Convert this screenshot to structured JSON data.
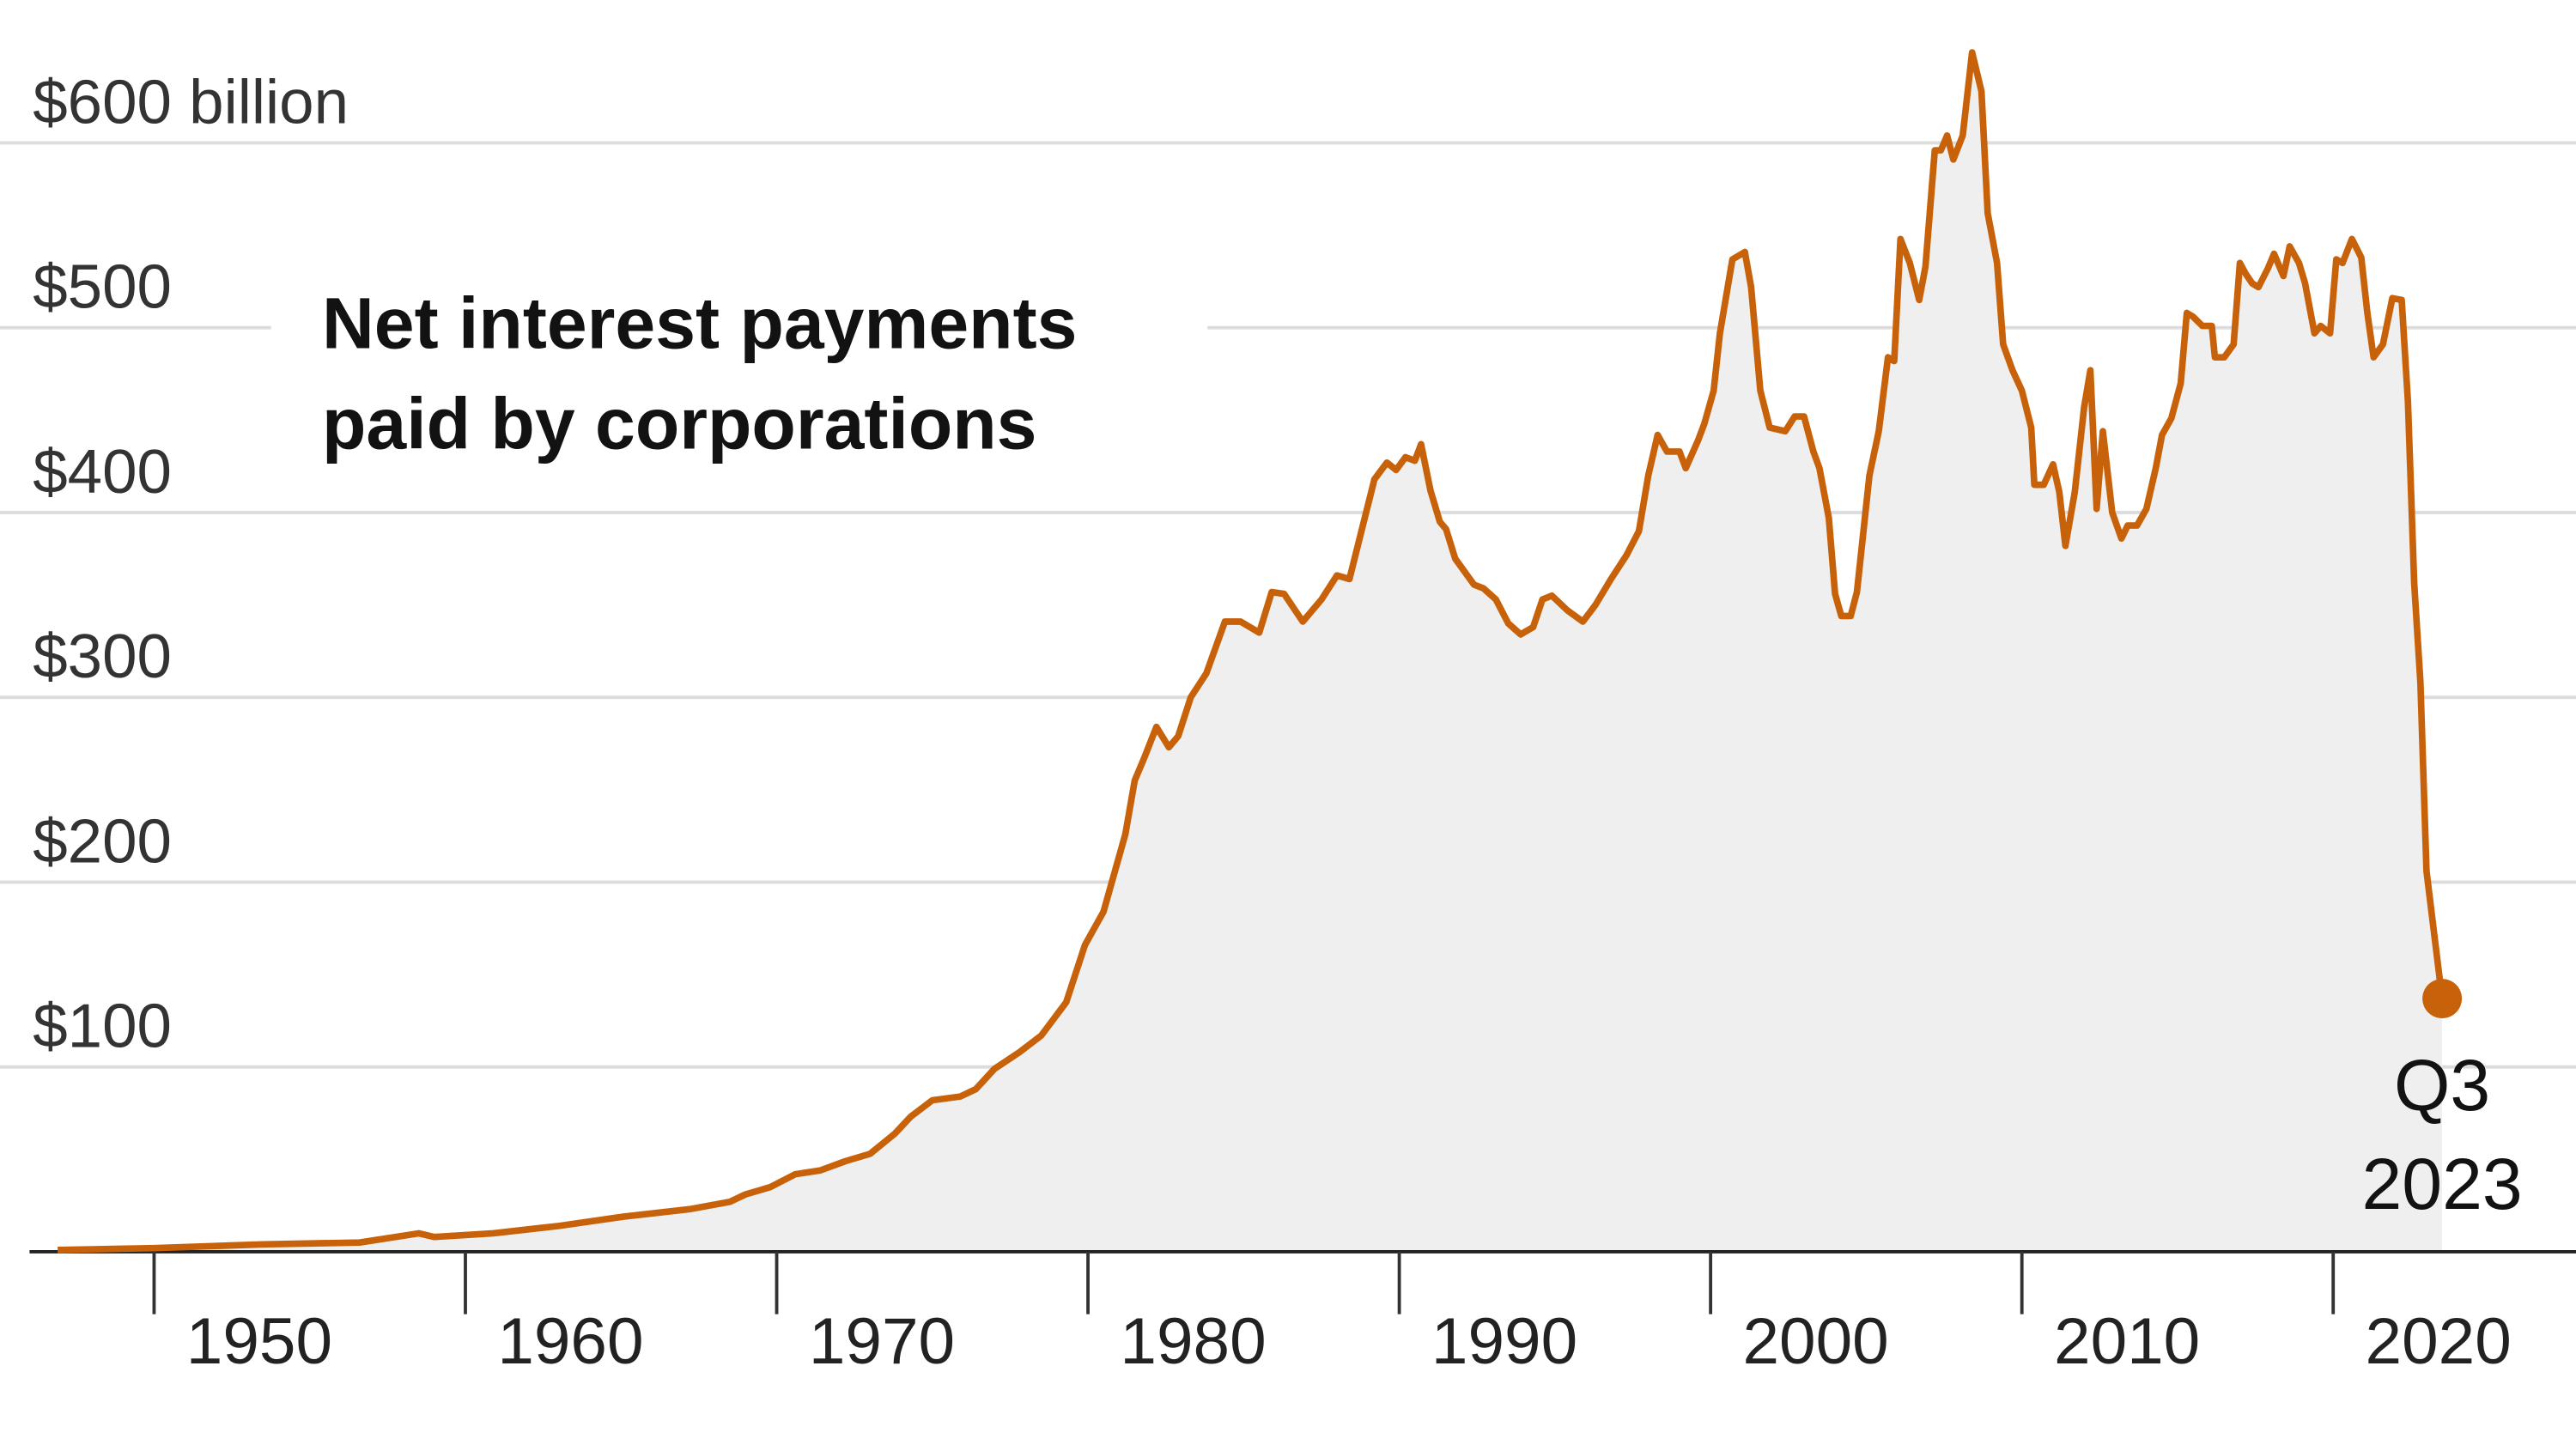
{
  "chart_data": {
    "type": "area",
    "title": [
      "Net interest payments",
      "paid by corporations"
    ],
    "end_label": [
      "Q3",
      "2023"
    ],
    "color": "#c8620a",
    "fill": "#efefef",
    "grid": true,
    "xlim": [
      1946,
      2027.8
    ],
    "ylim": [
      0,
      660
    ],
    "xticks": [
      1950,
      1960,
      1970,
      1980,
      1990,
      2000,
      2010,
      2020
    ],
    "yticks": [
      {
        "value": 100,
        "label": "$100"
      },
      {
        "value": 200,
        "label": "$200"
      },
      {
        "value": 300,
        "label": "$300"
      },
      {
        "value": 400,
        "label": "$400"
      },
      {
        "value": 500,
        "label": "$500"
      },
      {
        "value": 600,
        "label": "$600 billion"
      }
    ],
    "x": [
      1946.9,
      1950.0,
      1953.5,
      1956.6,
      1958.5,
      1959.0,
      1960.9,
      1963.0,
      1965.1,
      1967.2,
      1968.5,
      1969.0,
      1969.8,
      1970.6,
      1971.4,
      1972.2,
      1973.0,
      1973.8,
      1974.3,
      1975.0,
      1975.9,
      1976.4,
      1977.0,
      1977.8,
      1978.5,
      1979.3,
      1979.9,
      1980.5,
      1980.8,
      1981.2,
      1981.5,
      1981.8,
      1982.2,
      1982.6,
      1982.9,
      1983.3,
      1983.8,
      1984.4,
      1984.9,
      1985.5,
      1985.9,
      1986.3,
      1986.9,
      1987.5,
      1988.0,
      1988.4,
      1988.8,
      1989.2,
      1989.6,
      1989.9,
      1990.2,
      1990.5,
      1990.7,
      1991.0,
      1991.3,
      1991.5,
      1991.8,
      1992.4,
      1992.7,
      1993.1,
      1993.5,
      1993.9,
      1994.3,
      1994.6,
      1994.9,
      1995.4,
      1995.9,
      1996.3,
      1996.8,
      1997.3,
      1997.7,
      1998.0,
      1998.3,
      1998.6,
      1999.0,
      1999.2,
      1999.6,
      1999.8,
      2000.1,
      2000.3,
      2000.7,
      2001.1,
      2001.3,
      2001.6,
      2001.9,
      2002.4,
      2002.7,
      2003.0,
      2003.3,
      2003.5,
      2003.8,
      2004.0,
      2004.2,
      2004.5,
      2004.7,
      2005.1,
      2005.4,
      2005.7,
      2005.9,
      2006.1,
      2006.4,
      2006.7,
      2006.9,
      2007.2,
      2007.4,
      2007.6,
      2007.8,
      2008.1,
      2008.4,
      2008.7,
      2008.9,
      2009.2,
      2009.4,
      2009.7,
      2010.0,
      2010.3,
      2010.4,
      2010.7,
      2011.0,
      2011.2,
      2011.4,
      2011.7,
      2012.0,
      2012.2,
      2012.4,
      2012.6,
      2012.9,
      2013.2,
      2013.4,
      2013.7,
      2014.0,
      2014.3,
      2014.5,
      2014.8,
      2015.1,
      2015.3,
      2015.5,
      2015.8,
      2016.1,
      2016.2,
      2016.5,
      2016.8,
      2017.0,
      2017.2,
      2017.4,
      2017.6,
      2017.9,
      2018.1,
      2018.4,
      2018.6,
      2018.9,
      2019.1,
      2019.4,
      2019.6,
      2019.9,
      2020.1,
      2020.3,
      2020.6,
      2020.9,
      2021.1,
      2021.3,
      2021.6,
      2021.9,
      2022.2,
      2022.4,
      2022.6,
      2022.8,
      2023.0,
      2023.5
    ],
    "values": [
      1,
      2,
      4,
      5,
      10,
      8,
      10,
      14,
      19,
      23,
      27,
      31,
      35,
      42,
      44,
      49,
      53,
      64,
      73,
      82,
      84,
      88,
      99,
      108,
      117,
      135,
      166,
      184,
      202,
      226,
      255,
      267,
      284,
      273,
      279,
      300,
      313,
      341,
      341,
      335,
      357,
      356,
      341,
      353,
      366,
      364,
      391,
      418,
      427,
      423,
      430,
      428,
      437,
      412,
      395,
      391,
      375,
      361,
      359,
      353,
      340,
      334,
      338,
      353,
      355,
      347,
      341,
      350,
      364,
      377,
      390,
      420,
      442,
      433,
      433,
      424,
      439,
      448,
      466,
      497,
      537,
      541,
      522,
      466,
      446,
      444,
      452,
      452,
      433,
      424,
      397,
      356,
      344,
      344,
      357,
      420,
      444,
      484,
      482,
      548,
      535,
      515,
      533,
      596,
      596,
      604,
      591,
      604,
      649,
      628,
      562,
      535,
      491,
      477,
      466,
      446,
      415,
      415,
      426,
      411,
      382,
      411,
      457,
      477,
      402,
      444,
      400,
      386,
      393,
      393,
      402,
      424,
      442,
      451,
      470,
      508,
      506,
      501,
      501,
      484,
      484,
      491,
      535,
      529,
      524,
      522,
      532,
      540,
      528,
      544,
      535,
      524,
      497,
      501,
      497,
      537,
      535,
      548,
      538,
      508,
      484,
      491,
      516,
      515,
      460,
      362,
      308,
      206,
      137
    ]
  }
}
